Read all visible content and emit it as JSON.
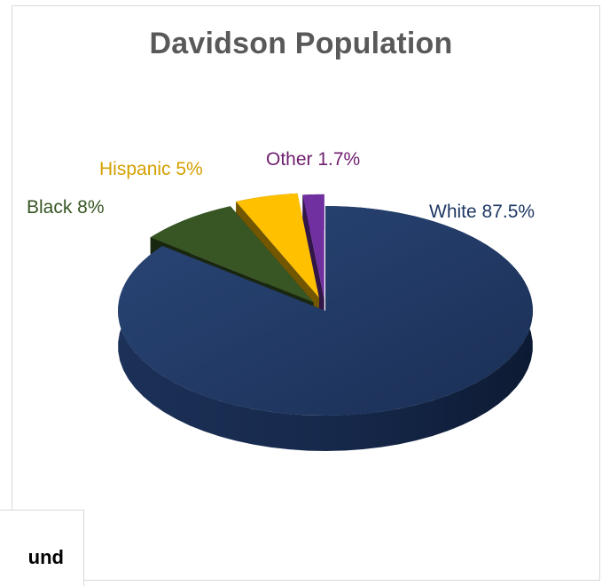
{
  "chart_data": {
    "type": "pie",
    "title": "Davidson Population",
    "categories": [
      "White",
      "Black",
      "Hispanic",
      "Other"
    ],
    "values": [
      87.5,
      8,
      5,
      1.7
    ],
    "labels": [
      "White 87.5%",
      "Black 8%",
      "Hispanic 5%",
      "Other 1.7%"
    ],
    "colors": [
      "#1f3864",
      "#375623",
      "#ffc000",
      "#7030a0"
    ],
    "label_colors": [
      "#1f3864",
      "#375623",
      "#d4a000",
      "#6e1f6e"
    ],
    "style": "3d-exploded",
    "legend": "none"
  },
  "partial_box": {
    "text": "und"
  }
}
